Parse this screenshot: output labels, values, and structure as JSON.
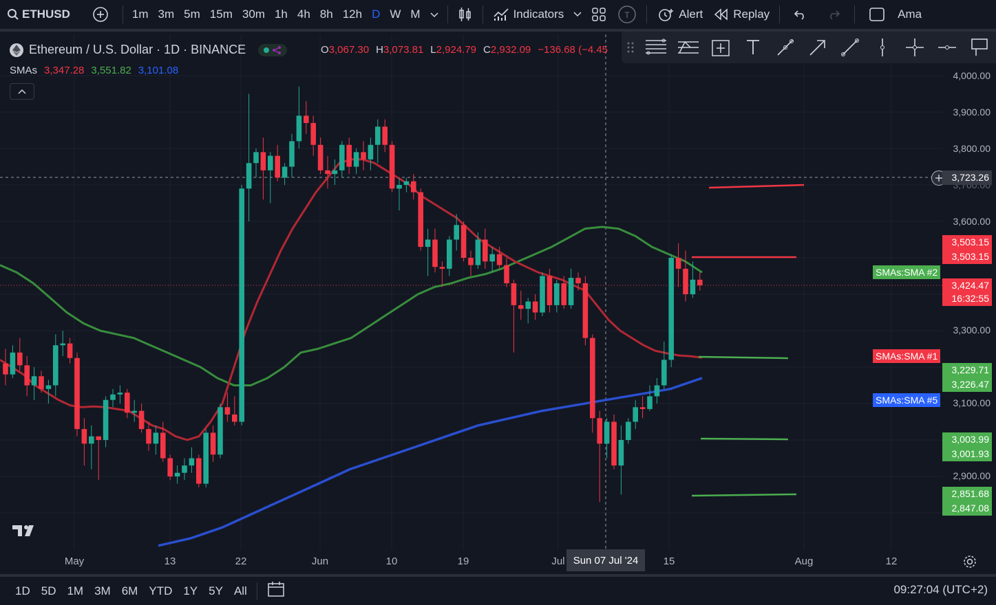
{
  "toolbar": {
    "symbol": "ETHUSD",
    "intervals": [
      "1m",
      "3m",
      "5m",
      "15m",
      "30m",
      "1h",
      "4h",
      "8h",
      "12h",
      "D",
      "W",
      "M"
    ],
    "active_interval": "D",
    "indicators_label": "Indicators",
    "alert_label": "Alert",
    "replay_label": "Replay",
    "truncated_label": "Ama"
  },
  "legend": {
    "title": "Ethereum / U.S. Dollar · 1D · BINANCE",
    "o_label": "O",
    "o_value": "3,067.30",
    "h_label": "H",
    "h_value": "3,073.81",
    "l_label": "L",
    "l_value": "2,924.79",
    "c_label": "C",
    "c_value": "2,932.09",
    "change": "−136.68 (−4.45",
    "sma_label": "SMAs",
    "sma_values": [
      "3,347.28",
      "3,551.82",
      "3,101.08"
    ],
    "sma_colors": [
      "#f23645",
      "#4caf50",
      "#2962ff"
    ]
  },
  "price_axis": {
    "ticks": [
      "4,000.00",
      "3,900.00",
      "3,800.00",
      "3,700.00",
      "3,600.00",
      "3,300.00",
      "3,100.00",
      "2,900.00"
    ],
    "crosshair_price": "3,723.26",
    "tags": [
      {
        "text": "3,503.15",
        "color": "#f23645"
      },
      {
        "text": "3,503.15",
        "color": "#f23645"
      },
      {
        "text": "3,424.47",
        "color": "#f23645"
      },
      {
        "text": "16:32:55",
        "color": "#f23645"
      },
      {
        "text": "3,229.71",
        "color": "#4caf50"
      },
      {
        "text": "3,226.47",
        "color": "#4caf50"
      },
      {
        "text": "3,003.99",
        "color": "#4caf50"
      },
      {
        "text": "3,001.93",
        "color": "#4caf50"
      },
      {
        "text": "2,851.68",
        "color": "#4caf50"
      },
      {
        "text": "2,847.08",
        "color": "#4caf50"
      }
    ],
    "sma_tags": [
      "SMAs:SMA #2",
      "SMAs:SMA #1",
      "SMAs:SMA #5"
    ]
  },
  "time_axis": {
    "labels": [
      "May",
      "13",
      "22",
      "Jun",
      "10",
      "19",
      "Jul",
      "15",
      "Aug",
      "12"
    ],
    "crosshair_date": "Sun 07 Jul '24"
  },
  "bottom": {
    "ranges": [
      "1D",
      "5D",
      "1M",
      "3M",
      "6M",
      "YTD",
      "1Y",
      "5Y",
      "All"
    ],
    "clock": "09:27:04 (UTC+2)"
  },
  "chart_data": {
    "type": "candlestick",
    "series": [
      {
        "name": "SMA #1",
        "color": "#f23645"
      },
      {
        "name": "SMA #2",
        "color": "#4caf50"
      },
      {
        "name": "SMA #5",
        "color": "#2962ff"
      }
    ],
    "candles": [
      {
        "o": 3210,
        "h": 3250,
        "l": 3150,
        "c": 3180
      },
      {
        "o": 3180,
        "h": 3260,
        "l": 3170,
        "c": 3240
      },
      {
        "o": 3240,
        "h": 3280,
        "l": 3190,
        "c": 3205
      },
      {
        "o": 3205,
        "h": 3230,
        "l": 3120,
        "c": 3150
      },
      {
        "o": 3150,
        "h": 3200,
        "l": 3110,
        "c": 3175
      },
      {
        "o": 3175,
        "h": 3190,
        "l": 3130,
        "c": 3140
      },
      {
        "o": 3140,
        "h": 3165,
        "l": 3100,
        "c": 3150
      },
      {
        "o": 3150,
        "h": 3290,
        "l": 3120,
        "c": 3260
      },
      {
        "o": 3260,
        "h": 3300,
        "l": 3230,
        "c": 3265
      },
      {
        "o": 3265,
        "h": 3280,
        "l": 3210,
        "c": 3225
      },
      {
        "o": 3225,
        "h": 3240,
        "l": 3010,
        "c": 3030
      },
      {
        "o": 3030,
        "h": 3060,
        "l": 2930,
        "c": 2990
      },
      {
        "o": 2990,
        "h": 3040,
        "l": 2920,
        "c": 3010
      },
      {
        "o": 3010,
        "h": 3010,
        "l": 2890,
        "c": 3000
      },
      {
        "o": 3000,
        "h": 3120,
        "l": 2980,
        "c": 3110
      },
      {
        "o": 3110,
        "h": 3140,
        "l": 3090,
        "c": 3125
      },
      {
        "o": 3125,
        "h": 3150,
        "l": 3100,
        "c": 3130
      },
      {
        "o": 3130,
        "h": 3140,
        "l": 3060,
        "c": 3075
      },
      {
        "o": 3075,
        "h": 3110,
        "l": 3050,
        "c": 3080
      },
      {
        "o": 3080,
        "h": 3100,
        "l": 3020,
        "c": 3030
      },
      {
        "o": 3030,
        "h": 3050,
        "l": 2970,
        "c": 2990
      },
      {
        "o": 2990,
        "h": 3040,
        "l": 2960,
        "c": 3020
      },
      {
        "o": 3020,
        "h": 3050,
        "l": 2940,
        "c": 2950
      },
      {
        "o": 2950,
        "h": 2960,
        "l": 2890,
        "c": 2900
      },
      {
        "o": 2900,
        "h": 2930,
        "l": 2880,
        "c": 2910
      },
      {
        "o": 2910,
        "h": 2950,
        "l": 2890,
        "c": 2930
      },
      {
        "o": 2930,
        "h": 2980,
        "l": 2910,
        "c": 2950
      },
      {
        "o": 2950,
        "h": 2960,
        "l": 2870,
        "c": 2880
      },
      {
        "o": 2880,
        "h": 3030,
        "l": 2870,
        "c": 3020
      },
      {
        "o": 3020,
        "h": 3040,
        "l": 2940,
        "c": 2960
      },
      {
        "o": 2960,
        "h": 3100,
        "l": 2950,
        "c": 3090
      },
      {
        "o": 3090,
        "h": 3130,
        "l": 3050,
        "c": 3070
      },
      {
        "o": 3070,
        "h": 3120,
        "l": 3040,
        "c": 3050
      },
      {
        "o": 3050,
        "h": 3700,
        "l": 3040,
        "c": 3690
      },
      {
        "o": 3690,
        "h": 3950,
        "l": 3600,
        "c": 3760
      },
      {
        "o": 3760,
        "h": 3800,
        "l": 3720,
        "c": 3790
      },
      {
        "o": 3790,
        "h": 3830,
        "l": 3660,
        "c": 3740
      },
      {
        "o": 3740,
        "h": 3790,
        "l": 3650,
        "c": 3780
      },
      {
        "o": 3780,
        "h": 3810,
        "l": 3710,
        "c": 3720
      },
      {
        "o": 3720,
        "h": 3760,
        "l": 3700,
        "c": 3750
      },
      {
        "o": 3750,
        "h": 3840,
        "l": 3720,
        "c": 3820
      },
      {
        "o": 3820,
        "h": 3970,
        "l": 3800,
        "c": 3890
      },
      {
        "o": 3890,
        "h": 3930,
        "l": 3840,
        "c": 3870
      },
      {
        "o": 3870,
        "h": 3890,
        "l": 3780,
        "c": 3810
      },
      {
        "o": 3810,
        "h": 3830,
        "l": 3730,
        "c": 3740
      },
      {
        "o": 3740,
        "h": 3780,
        "l": 3690,
        "c": 3730
      },
      {
        "o": 3730,
        "h": 3770,
        "l": 3700,
        "c": 3740
      },
      {
        "o": 3740,
        "h": 3820,
        "l": 3720,
        "c": 3810
      },
      {
        "o": 3810,
        "h": 3830,
        "l": 3730,
        "c": 3750
      },
      {
        "o": 3750,
        "h": 3800,
        "l": 3730,
        "c": 3790
      },
      {
        "o": 3790,
        "h": 3820,
        "l": 3740,
        "c": 3770
      },
      {
        "o": 3770,
        "h": 3830,
        "l": 3740,
        "c": 3810
      },
      {
        "o": 3810,
        "h": 3880,
        "l": 3760,
        "c": 3860
      },
      {
        "o": 3860,
        "h": 3880,
        "l": 3790,
        "c": 3810
      },
      {
        "o": 3810,
        "h": 3820,
        "l": 3680,
        "c": 3690
      },
      {
        "o": 3690,
        "h": 3720,
        "l": 3630,
        "c": 3700
      },
      {
        "o": 3700,
        "h": 3720,
        "l": 3680,
        "c": 3710
      },
      {
        "o": 3710,
        "h": 3730,
        "l": 3660,
        "c": 3680
      },
      {
        "o": 3680,
        "h": 3690,
        "l": 3520,
        "c": 3530
      },
      {
        "o": 3530,
        "h": 3580,
        "l": 3450,
        "c": 3550
      },
      {
        "o": 3550,
        "h": 3580,
        "l": 3460,
        "c": 3475
      },
      {
        "o": 3475,
        "h": 3490,
        "l": 3420,
        "c": 3470
      },
      {
        "o": 3470,
        "h": 3560,
        "l": 3450,
        "c": 3550
      },
      {
        "o": 3550,
        "h": 3620,
        "l": 3520,
        "c": 3590
      },
      {
        "o": 3590,
        "h": 3600,
        "l": 3490,
        "c": 3500
      },
      {
        "o": 3500,
        "h": 3520,
        "l": 3450,
        "c": 3480
      },
      {
        "o": 3480,
        "h": 3570,
        "l": 3470,
        "c": 3550
      },
      {
        "o": 3550,
        "h": 3580,
        "l": 3470,
        "c": 3490
      },
      {
        "o": 3490,
        "h": 3530,
        "l": 3460,
        "c": 3510
      },
      {
        "o": 3510,
        "h": 3530,
        "l": 3470,
        "c": 3480
      },
      {
        "o": 3480,
        "h": 3500,
        "l": 3420,
        "c": 3430
      },
      {
        "o": 3430,
        "h": 3440,
        "l": 3240,
        "c": 3370
      },
      {
        "o": 3370,
        "h": 3410,
        "l": 3330,
        "c": 3360
      },
      {
        "o": 3360,
        "h": 3390,
        "l": 3320,
        "c": 3380
      },
      {
        "o": 3380,
        "h": 3400,
        "l": 3330,
        "c": 3350
      },
      {
        "o": 3350,
        "h": 3460,
        "l": 3340,
        "c": 3450
      },
      {
        "o": 3450,
        "h": 3470,
        "l": 3350,
        "c": 3370
      },
      {
        "o": 3370,
        "h": 3440,
        "l": 3350,
        "c": 3430
      },
      {
        "o": 3430,
        "h": 3450,
        "l": 3360,
        "c": 3370
      },
      {
        "o": 3370,
        "h": 3470,
        "l": 3360,
        "c": 3445
      },
      {
        "o": 3445,
        "h": 3460,
        "l": 3410,
        "c": 3430
      },
      {
        "o": 3430,
        "h": 3450,
        "l": 3260,
        "c": 3280
      },
      {
        "o": 3280,
        "h": 3290,
        "l": 3020,
        "c": 3060
      },
      {
        "o": 3060,
        "h": 3080,
        "l": 2830,
        "c": 2990
      },
      {
        "o": 2990,
        "h": 3060,
        "l": 2950,
        "c": 3050
      },
      {
        "o": 3050,
        "h": 3070,
        "l": 2920,
        "c": 2930
      },
      {
        "o": 2930,
        "h": 3040,
        "l": 2850,
        "c": 3000
      },
      {
        "o": 3000,
        "h": 3060,
        "l": 2990,
        "c": 3050
      },
      {
        "o": 3050,
        "h": 3110,
        "l": 3030,
        "c": 3090
      },
      {
        "o": 3090,
        "h": 3120,
        "l": 3060,
        "c": 3085
      },
      {
        "o": 3085,
        "h": 3150,
        "l": 3080,
        "c": 3120
      },
      {
        "o": 3120,
        "h": 3170,
        "l": 3100,
        "c": 3150
      },
      {
        "o": 3150,
        "h": 3270,
        "l": 3140,
        "c": 3220
      },
      {
        "o": 3220,
        "h": 3510,
        "l": 3200,
        "c": 3500
      },
      {
        "o": 3500,
        "h": 3540,
        "l": 3420,
        "c": 3470
      },
      {
        "o": 3470,
        "h": 3520,
        "l": 3380,
        "c": 3400
      },
      {
        "o": 3400,
        "h": 3490,
        "l": 3390,
        "c": 3440
      },
      {
        "o": 3440,
        "h": 3460,
        "l": 3410,
        "c": 3424.47
      }
    ],
    "sma1": [
      3220,
      3200,
      3180,
      3150,
      3130,
      3110,
      3095,
      3090,
      3092,
      3090,
      3085,
      3080,
      3060,
      3040,
      3030,
      3010,
      3000,
      3010,
      3050,
      3100,
      3200,
      3300,
      3380,
      3450,
      3520,
      3580,
      3630,
      3680,
      3720,
      3760,
      3770,
      3770,
      3760,
      3740,
      3720,
      3700,
      3670,
      3650,
      3630,
      3610,
      3580,
      3550,
      3530,
      3510,
      3490,
      3475,
      3460,
      3450,
      3440,
      3425,
      3410,
      3370,
      3330,
      3300,
      3280,
      3260,
      3245,
      3238,
      3232,
      3230,
      3226
    ],
    "sma1_idx": [
      0,
      4,
      8,
      12,
      16,
      20,
      24,
      28,
      32,
      36,
      40,
      44,
      48,
      52,
      56,
      60,
      64,
      68,
      70,
      72,
      74,
      76,
      78,
      80,
      82,
      84,
      86,
      88,
      90,
      92,
      94,
      96,
      98,
      100,
      102,
      104,
      106,
      108,
      110,
      112,
      114,
      116,
      118,
      120,
      122,
      124,
      126,
      128,
      130,
      132,
      134,
      136,
      138,
      140,
      142,
      144,
      146,
      148,
      150,
      152,
      154
    ],
    "sma2": [
      3480,
      3460,
      3430,
      3390,
      3350,
      3320,
      3300,
      3290,
      3280,
      3260,
      3240,
      3220,
      3200,
      3170,
      3150,
      3150,
      3170,
      3200,
      3240,
      3250,
      3265,
      3280,
      3310,
      3340,
      3370,
      3400,
      3420,
      3430,
      3445,
      3455,
      3470,
      3490,
      3510,
      3530,
      3555,
      3580,
      3585,
      3580,
      3560,
      3530,
      3510,
      3490,
      3460
    ],
    "sma5": [
      2710,
      2730,
      2760,
      2800,
      2840,
      2880,
      2920,
      2950,
      2980,
      3010,
      3040,
      3060,
      3080,
      3095,
      3110,
      3125,
      3140,
      3170
    ]
  },
  "horizontal_lines": [
    {
      "price": "3,723.26",
      "label": "crosshair"
    }
  ]
}
